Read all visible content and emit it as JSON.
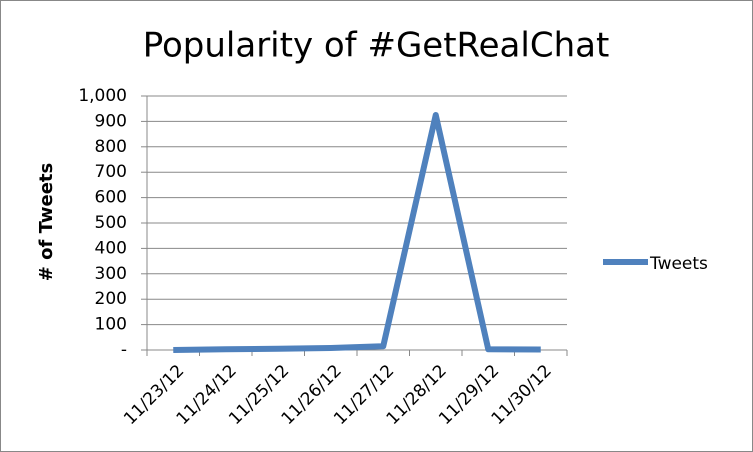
{
  "chart_data": {
    "type": "line",
    "title": "Popularity of #GetRealChat",
    "y_label": "# of Tweets",
    "categories": [
      "11/23/12",
      "11/24/12",
      "11/25/12",
      "11/26/12",
      "11/27/12",
      "11/28/12",
      "11/29/12",
      "11/30/12"
    ],
    "series": [
      {
        "name": "Tweets",
        "color": "#4f81bd",
        "values": [
          0,
          3,
          5,
          8,
          15,
          925,
          3,
          2
        ]
      }
    ],
    "ylim": [
      0,
      1000
    ],
    "yticks": [
      {
        "value": 0,
        "label": "-"
      },
      100,
      200,
      300,
      400,
      500,
      600,
      700,
      800,
      900,
      {
        "value": 1000,
        "label": "1,000"
      }
    ],
    "grid": true,
    "legend": "right"
  }
}
